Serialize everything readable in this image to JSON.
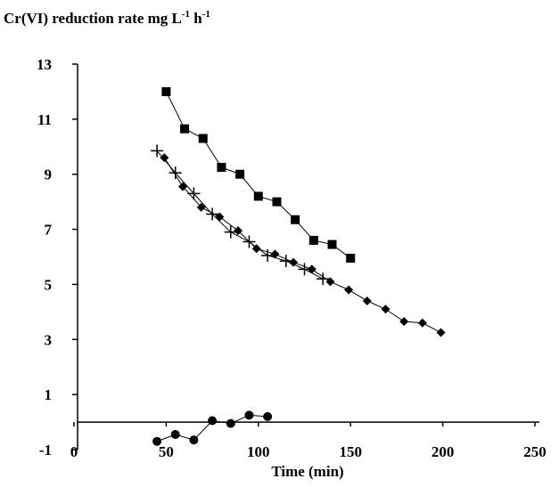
{
  "chart_data": {
    "type": "line",
    "y_label": [
      "Cr(VI) reduction rate mg L",
      "-1",
      " h",
      "-1"
    ],
    "x_label": "Time (min)",
    "xlim": [
      0,
      250
    ],
    "xticks": [
      0,
      50,
      100,
      150,
      200,
      250
    ],
    "ylim": [
      -1,
      13
    ],
    "yticks": [
      -1,
      1,
      3,
      5,
      7,
      9,
      11,
      13
    ],
    "series": [
      {
        "marker": "square",
        "color": "#000000",
        "x": [
          50,
          60,
          70,
          80,
          90,
          100,
          110,
          120,
          130,
          140,
          150
        ],
        "values": [
          12.0,
          10.65,
          10.3,
          9.25,
          9.0,
          8.2,
          8.0,
          7.35,
          6.6,
          6.45,
          5.95
        ]
      },
      {
        "marker": "diamond",
        "color": "#000000",
        "x": [
          49,
          59,
          69,
          79,
          89,
          99,
          109,
          119,
          129,
          139,
          149,
          159,
          169,
          179,
          189,
          199
        ],
        "values": [
          9.6,
          8.55,
          7.8,
          7.45,
          6.95,
          6.3,
          6.1,
          5.8,
          5.55,
          5.1,
          4.8,
          4.4,
          4.1,
          3.65,
          3.6,
          3.25
        ]
      },
      {
        "marker": "plus",
        "color": "#000000",
        "x": [
          45,
          55,
          65,
          75,
          85,
          95,
          105,
          115,
          125,
          135
        ],
        "values": [
          9.85,
          9.05,
          8.3,
          7.55,
          6.9,
          6.55,
          6.05,
          5.85,
          5.55,
          5.2
        ]
      },
      {
        "marker": "circle",
        "color": "#000000",
        "x": [
          45,
          55,
          65,
          75,
          85,
          95,
          105
        ],
        "values": [
          -0.7,
          -0.45,
          -0.65,
          0.05,
          -0.05,
          0.25,
          0.2
        ]
      }
    ]
  }
}
